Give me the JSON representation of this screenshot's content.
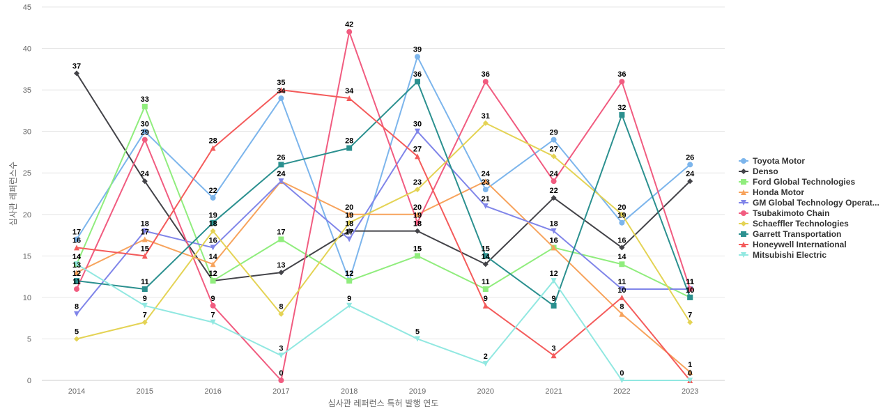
{
  "chart_data": {
    "type": "line",
    "title": "",
    "xlabel": "심사관 레퍼런스 특허 발행 연도",
    "ylabel": "심사관 레퍼런스수",
    "ylim": [
      0,
      45
    ],
    "yticks": [
      0,
      5,
      10,
      15,
      20,
      25,
      30,
      35,
      40,
      45
    ],
    "categories": [
      "2014",
      "2015",
      "2016",
      "2017",
      "2018",
      "2019",
      "2020",
      "2021",
      "2022",
      "2023"
    ],
    "legend_position": "right",
    "series": [
      {
        "name": "Toyota Motor",
        "color": "#7cb5ec",
        "marker": "circle",
        "values": [
          17,
          30,
          22,
          34,
          12,
          39,
          23,
          29,
          19,
          26
        ]
      },
      {
        "name": "Denso",
        "color": "#434348",
        "marker": "diamond",
        "values": [
          37,
          24,
          12,
          13,
          18,
          18,
          14,
          22,
          16,
          24
        ]
      },
      {
        "name": "Ford Global Technologies",
        "color": "#90ed7d",
        "marker": "square",
        "values": [
          14,
          33,
          12,
          17,
          12,
          15,
          11,
          16,
          14,
          10
        ]
      },
      {
        "name": "Honda Motor",
        "color": "#f7a35c",
        "marker": "triangle",
        "values": [
          13,
          17,
          14,
          24,
          20,
          20,
          24,
          16,
          8,
          1
        ]
      },
      {
        "name": "GM Global Technology Operat...",
        "color": "#8085e9",
        "marker": "triangle-down",
        "values": [
          8,
          18,
          16,
          24,
          17,
          30,
          21,
          18,
          11,
          11
        ]
      },
      {
        "name": "Tsubakimoto Chain",
        "color": "#f15c80",
        "marker": "circle",
        "values": [
          11,
          29,
          9,
          0,
          42,
          19,
          36,
          24,
          36,
          11
        ]
      },
      {
        "name": "Schaeffler Technologies",
        "color": "#e4d354",
        "marker": "diamond",
        "values": [
          5,
          7,
          18,
          8,
          19,
          23,
          31,
          27,
          20,
          7
        ]
      },
      {
        "name": "Garrett Transportation",
        "color": "#2b908f",
        "marker": "square",
        "values": [
          12,
          11,
          19,
          26,
          28,
          36,
          15,
          9,
          32,
          10
        ]
      },
      {
        "name": "Honeywell International",
        "color": "#f45b5b",
        "marker": "triangle",
        "values": [
          16,
          15,
          28,
          35,
          34,
          27,
          9,
          3,
          10,
          0
        ]
      },
      {
        "name": "Mitsubishi Electric",
        "color": "#91e8e1",
        "marker": "triangle-down",
        "values": [
          14,
          9,
          7,
          3,
          9,
          5,
          2,
          12,
          0,
          0
        ]
      }
    ]
  }
}
